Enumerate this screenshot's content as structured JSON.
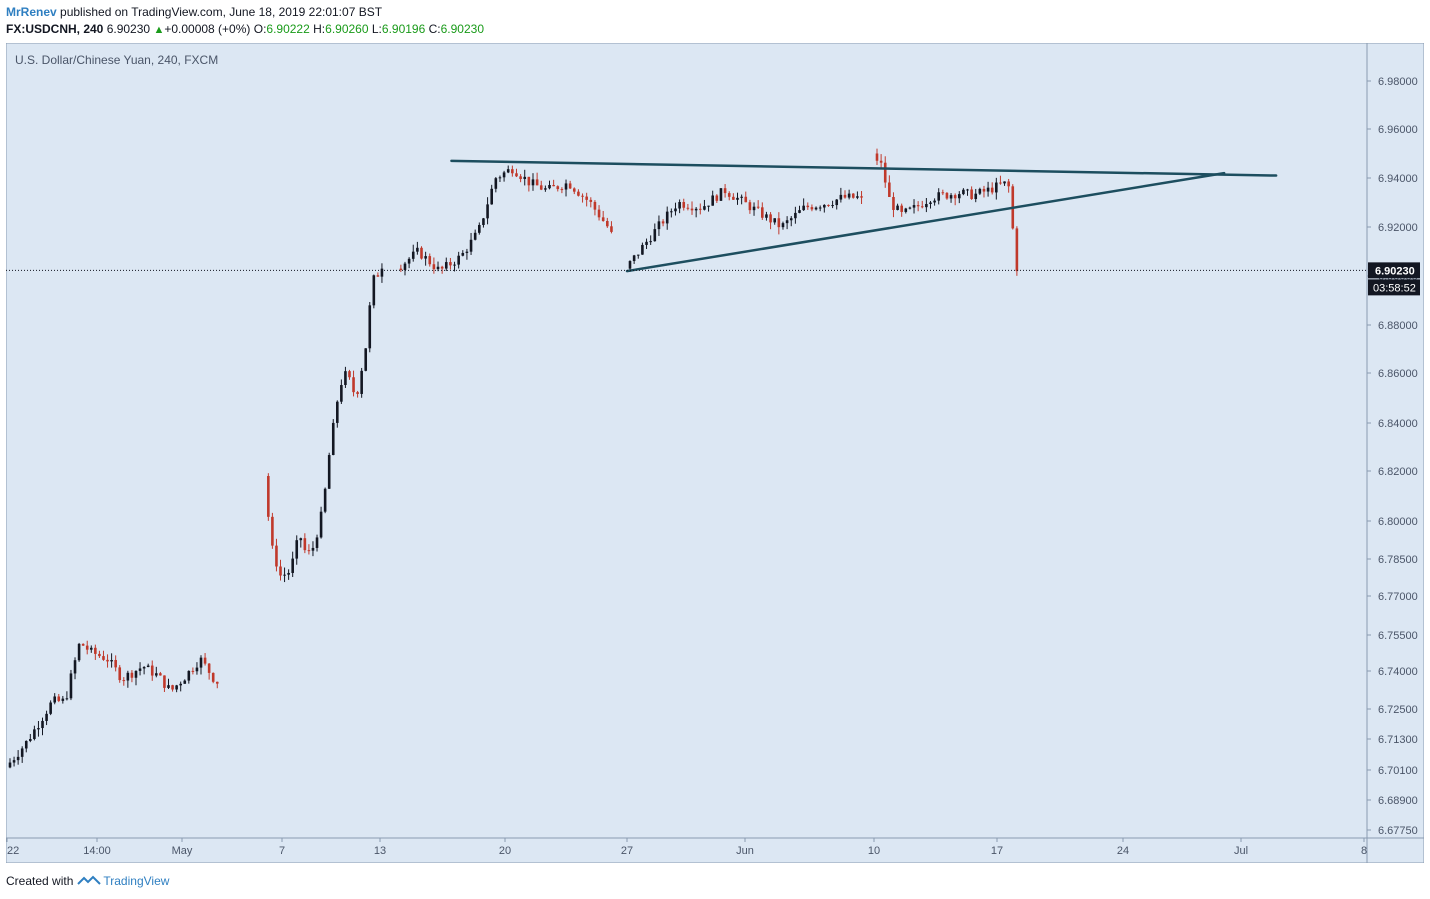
{
  "header": {
    "author": "MrRenev",
    "published_text": "published on TradingView.com, June 18, 2019 22:01:07 BST",
    "symbol": "FX:USDCNH, 240",
    "last": "6.90230",
    "change_icon": "up-triangle-icon",
    "change": "+0.00008 (+0%)",
    "o_label": "O:",
    "o_value": "6.90222",
    "h_label": "H:",
    "h_value": "6.90260",
    "l_label": "L:",
    "l_value": "6.90196",
    "c_label": "C:",
    "c_value": "6.90230"
  },
  "footer": {
    "created_with": "Created with",
    "brand": "TradingView",
    "logo_icon": "tradingview-logo-icon"
  },
  "colors": {
    "background": "#dce7f3",
    "up_candle": "#131722",
    "down_candle": "#c0392b",
    "trendline": "#1d4e5f",
    "price_line": "#131722",
    "price_label_bg": "#131722"
  },
  "chart_data": {
    "type": "candlestick",
    "title": "U.S. Dollar/Chinese Yuan, 240, FXCM",
    "y_axis_labels": [
      "6.98000",
      "6.96000",
      "6.94000",
      "6.92000",
      "6.90000",
      "6.88000",
      "6.86000",
      "6.84000",
      "6.82000",
      "6.80000",
      "6.78500",
      "6.77000",
      "6.75500",
      "6.74000",
      "6.72500",
      "6.71300",
      "6.70100",
      "6.68900",
      "6.67750"
    ],
    "x_axis_labels": [
      "22",
      "14:00",
      "May",
      "7",
      "13",
      "20",
      "27",
      "Jun",
      "10",
      "17",
      "24",
      "Jul",
      "8"
    ],
    "current_price": "6.90230",
    "countdown": "03:58:52",
    "segments": [
      {
        "from": "Apr 22",
        "to": "May 3",
        "open": 6.702,
        "close": 6.735,
        "low": 6.7,
        "high": 6.762,
        "path": [
          [
            0,
            6.702
          ],
          [
            0.1,
            6.712
          ],
          [
            0.22,
            6.728
          ],
          [
            0.28,
            6.728
          ],
          [
            0.35,
            6.752
          ],
          [
            0.4,
            6.748
          ],
          [
            0.48,
            6.745
          ],
          [
            0.55,
            6.737
          ],
          [
            0.65,
            6.742
          ],
          [
            0.72,
            6.738
          ],
          [
            0.78,
            6.732
          ],
          [
            0.85,
            6.738
          ],
          [
            0.92,
            6.745
          ],
          [
            1.0,
            6.735
          ]
        ]
      },
      {
        "from": "May 6",
        "to": "May 13",
        "open": 6.818,
        "close": 6.903,
        "low": 6.77,
        "high": 6.92,
        "path": [
          [
            0,
            6.818
          ],
          [
            0.06,
            6.79
          ],
          [
            0.14,
            6.778
          ],
          [
            0.22,
            6.78
          ],
          [
            0.3,
            6.795
          ],
          [
            0.36,
            6.786
          ],
          [
            0.42,
            6.79
          ],
          [
            0.5,
            6.805
          ],
          [
            0.56,
            6.83
          ],
          [
            0.64,
            6.855
          ],
          [
            0.7,
            6.86
          ],
          [
            0.78,
            6.85
          ],
          [
            0.86,
            6.87
          ],
          [
            0.92,
            6.898
          ],
          [
            1.0,
            6.903
          ]
        ]
      },
      {
        "from": "May 14",
        "to": "May 26",
        "open": 6.903,
        "close": 6.918,
        "low": 6.895,
        "high": 6.95,
        "path": [
          [
            0,
            6.903
          ],
          [
            0.1,
            6.91
          ],
          [
            0.2,
            6.902
          ],
          [
            0.3,
            6.908
          ],
          [
            0.38,
            6.918
          ],
          [
            0.46,
            6.94
          ],
          [
            0.54,
            6.944
          ],
          [
            0.62,
            6.938
          ],
          [
            0.7,
            6.935
          ],
          [
            0.8,
            6.938
          ],
          [
            0.9,
            6.93
          ],
          [
            1.0,
            6.918
          ]
        ]
      },
      {
        "from": "May 27",
        "to": "Jun 9",
        "open": 6.903,
        "close": 6.932,
        "low": 6.898,
        "high": 6.947,
        "path": [
          [
            0,
            6.903
          ],
          [
            0.12,
            6.918
          ],
          [
            0.22,
            6.93
          ],
          [
            0.32,
            6.928
          ],
          [
            0.42,
            6.935
          ],
          [
            0.5,
            6.93
          ],
          [
            0.58,
            6.925
          ],
          [
            0.66,
            6.92
          ],
          [
            0.76,
            6.928
          ],
          [
            0.86,
            6.93
          ],
          [
            0.92,
            6.932
          ],
          [
            1.0,
            6.932
          ]
        ]
      },
      {
        "from": "Jun 10",
        "to": "Jun 18",
        "open": 6.95,
        "close": 6.902,
        "low": 6.898,
        "high": 6.962,
        "path": [
          [
            0,
            6.95
          ],
          [
            0.06,
            6.945
          ],
          [
            0.12,
            6.93
          ],
          [
            0.2,
            6.925
          ],
          [
            0.3,
            6.928
          ],
          [
            0.4,
            6.932
          ],
          [
            0.5,
            6.933
          ],
          [
            0.6,
            6.934
          ],
          [
            0.7,
            6.933
          ],
          [
            0.8,
            6.935
          ],
          [
            0.88,
            6.937
          ],
          [
            0.94,
            6.938
          ],
          [
            1.0,
            6.902
          ]
        ]
      }
    ],
    "trendlines": [
      {
        "name": "resistance",
        "from": [
          "May 17",
          6.947
        ],
        "to": [
          "Jul 3",
          6.941
        ]
      },
      {
        "name": "support",
        "from": [
          "May 27",
          6.902
        ],
        "to": [
          "Jun 30",
          6.942
        ]
      }
    ]
  }
}
